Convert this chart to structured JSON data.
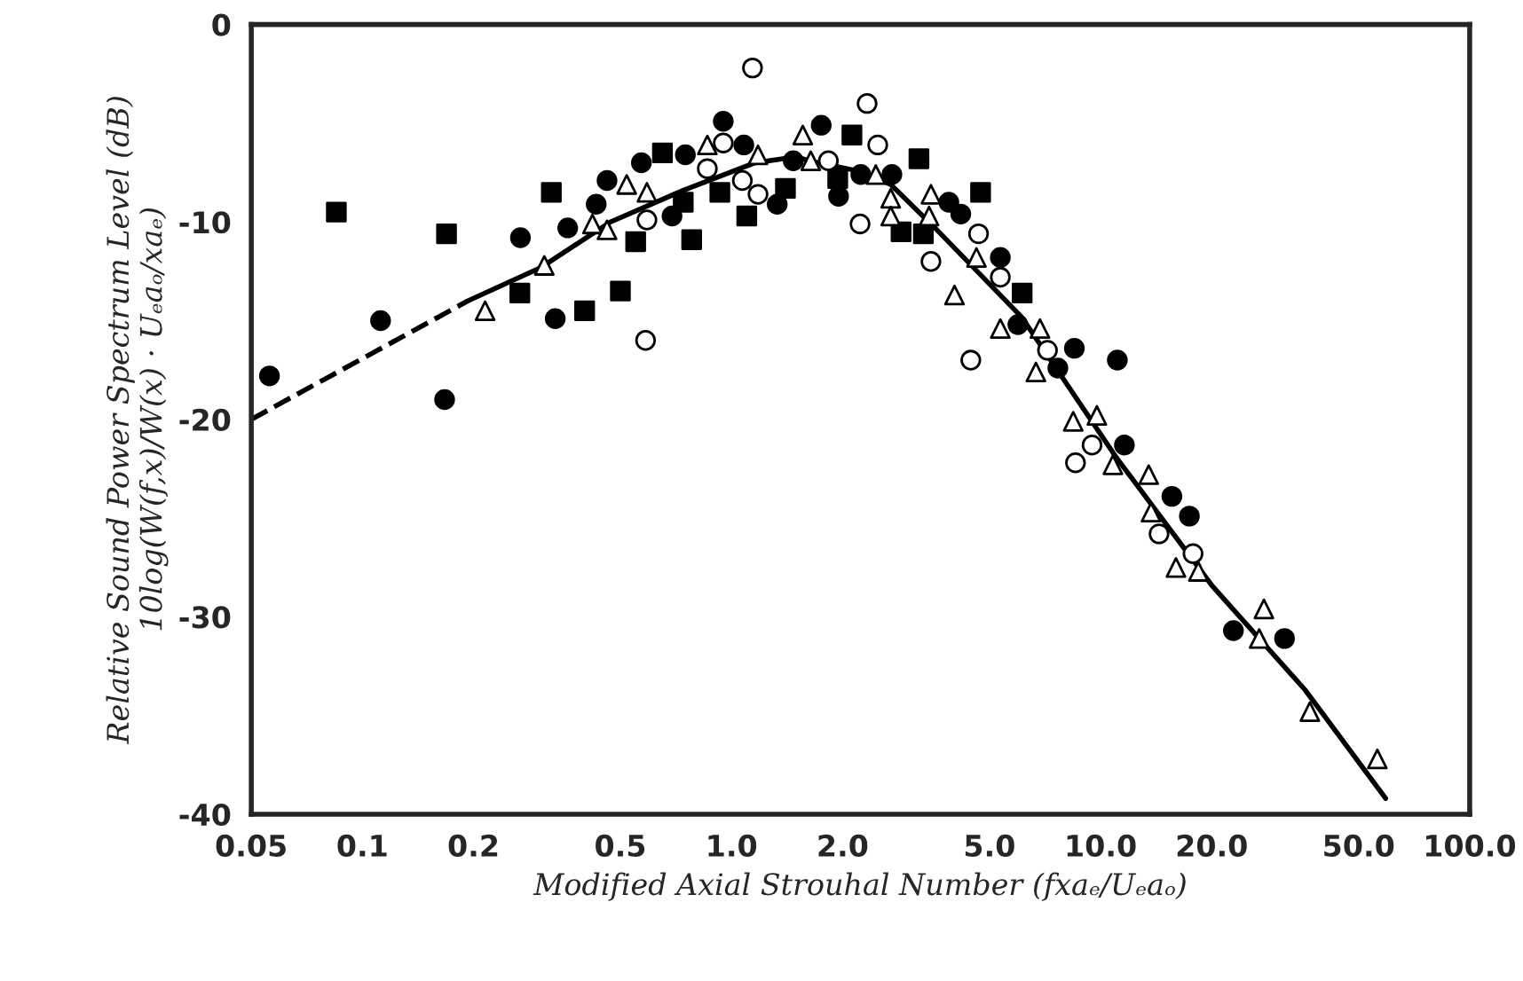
{
  "chart_data": {
    "type": "scatter",
    "xlabel": "Modified Axial Strouhal Number (fxaₑ/Uₑaₒ)",
    "ylabel": "Relative Sound Power Spectrum Level (dB)\n10log(W(f,x)/W(x) · Uₑaₒ/xaₑ)",
    "log": "x",
    "grid": false,
    "legend": false,
    "xlim": [
      0.05,
      100
    ],
    "ylim": [
      -40,
      0
    ],
    "xticks": [
      0.05,
      0.1,
      0.2,
      0.5,
      {
        "value": 1,
        "label": "1.0"
      },
      {
        "value": 2,
        "label": "2.0"
      },
      {
        "value": 5,
        "label": "5.0"
      },
      {
        "value": 10,
        "label": "10.0"
      },
      {
        "value": 20,
        "label": "20.0"
      },
      {
        "value": 50,
        "label": "50.0"
      },
      {
        "value": 100,
        "label": "100.0"
      }
    ],
    "yticks": [
      0,
      -10,
      -20,
      -30,
      -40
    ],
    "series": [
      {
        "marker": "circle",
        "color": "#000000",
        "x": [
          0.056,
          0.112,
          0.167,
          0.268,
          0.333,
          0.36,
          0.43,
          0.46,
          0.57,
          0.69,
          0.75,
          0.95,
          1.08,
          1.33,
          1.47,
          1.75,
          1.95,
          2.24,
          2.72,
          3.88,
          4.18,
          5.35,
          5.97,
          7.66,
          8.49,
          11.1,
          11.6,
          15.6,
          17.4,
          22.9,
          31.5
        ],
        "values": [
          -17.8,
          -15.0,
          -19.0,
          -10.8,
          -14.9,
          -10.3,
          -9.1,
          -7.9,
          -7.0,
          -9.7,
          -6.6,
          -4.9,
          -6.1,
          -9.1,
          -6.9,
          -5.1,
          -8.7,
          -7.6,
          -7.6,
          -9.0,
          -9.6,
          -11.8,
          -15.2,
          -17.4,
          -16.4,
          -17.0,
          -21.3,
          -23.9,
          -24.9,
          -30.7,
          -31.1
        ]
      },
      {
        "marker": "square",
        "color": "#000000",
        "x": [
          0.085,
          0.169,
          0.267,
          0.325,
          0.4,
          0.5,
          0.55,
          0.65,
          0.74,
          0.78,
          0.93,
          1.1,
          1.4,
          1.94,
          2.12,
          2.88,
          3.22,
          3.31,
          4.73,
          6.13
        ],
        "values": [
          -9.5,
          -10.6,
          -13.6,
          -8.5,
          -14.5,
          -13.5,
          -11.0,
          -6.5,
          -9.0,
          -10.9,
          -8.5,
          -9.7,
          -8.3,
          -7.8,
          -5.6,
          -10.5,
          -6.8,
          -10.6,
          -8.5,
          -13.6
        ]
      },
      {
        "marker": "circle",
        "color": "#ffffff",
        "x": [
          0.585,
          0.59,
          0.86,
          0.95,
          1.07,
          1.14,
          1.18,
          1.83,
          2.23,
          2.33,
          2.49,
          3.47,
          4.45,
          4.67,
          5.35,
          7.18,
          8.55,
          9.48,
          14.4,
          17.8
        ],
        "values": [
          -16.0,
          -9.9,
          -7.3,
          -6.0,
          -7.9,
          -2.2,
          -8.6,
          -6.9,
          -10.1,
          -4.0,
          -6.1,
          -12.0,
          -17.0,
          -10.6,
          -12.8,
          -16.5,
          -22.2,
          -21.3,
          -25.8,
          -26.8
        ]
      },
      {
        "marker": "triangle",
        "color": "#ffffff",
        "x": [
          0.215,
          0.311,
          0.42,
          0.46,
          0.52,
          0.59,
          0.86,
          1.18,
          1.56,
          1.64,
          2.46,
          2.7,
          2.7,
          3.43,
          3.47,
          4.02,
          4.61,
          5.35,
          6.68,
          6.85,
          8.43,
          9.77,
          10.8,
          13.5,
          13.7,
          16.0,
          18.4,
          26.9,
          27.7,
          36.9,
          56.2
        ],
        "values": [
          -14.5,
          -12.2,
          -10.1,
          -10.4,
          -8.1,
          -8.5,
          -6.1,
          -6.6,
          -5.6,
          -6.9,
          -7.6,
          -8.8,
          -9.7,
          -9.7,
          -8.6,
          -13.7,
          -11.8,
          -15.4,
          -17.6,
          -15.4,
          -20.1,
          -19.8,
          -22.3,
          -22.8,
          -24.7,
          -27.5,
          -27.7,
          -31.1,
          -29.6,
          -34.8,
          -37.2
        ]
      },
      {
        "type": "line",
        "line_style": "dashed",
        "color": "#000000",
        "x": [
          0.05,
          0.193
        ],
        "values": [
          -20.0,
          -14.0
        ]
      },
      {
        "type": "line",
        "line_style": "solid",
        "color": "#000000",
        "x": [
          0.193,
          0.305,
          0.47,
          0.74,
          1.16,
          1.5,
          1.62,
          2.18,
          2.7,
          3.6,
          6.1,
          11.0,
          20.0,
          35.8,
          59.2
        ],
        "values": [
          -14.0,
          -12.3,
          -10.0,
          -8.4,
          -7.0,
          -6.7,
          -6.9,
          -7.4,
          -8.1,
          -10.4,
          -14.8,
          -21.9,
          -28.4,
          -33.7,
          -39.2
        ]
      }
    ]
  }
}
